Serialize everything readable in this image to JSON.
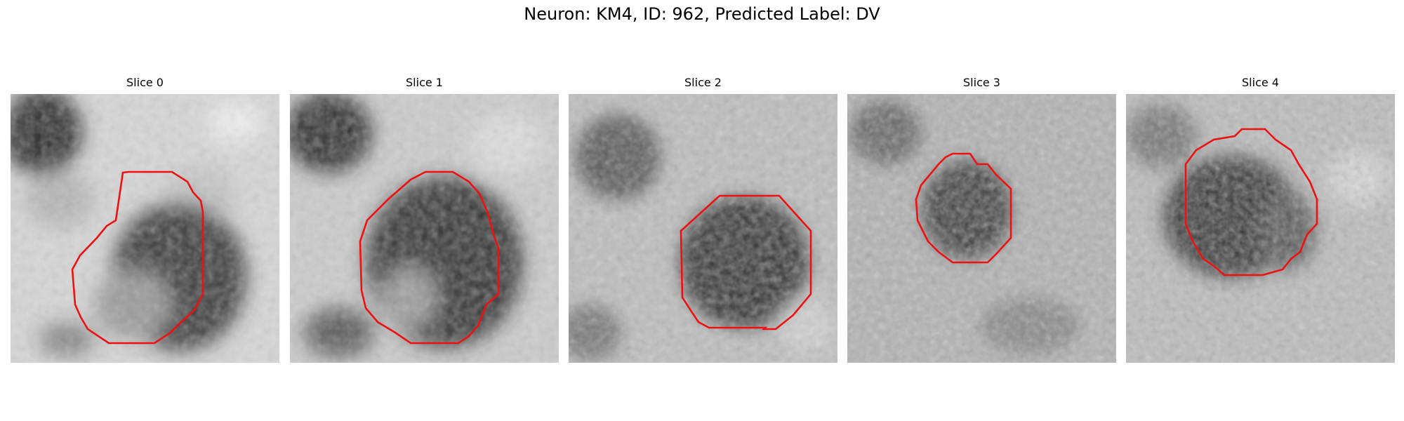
{
  "figure": {
    "title": "Neuron: KM4, ID: 962, Predicted Label: DV"
  },
  "slices": [
    {
      "label": "Slice 0"
    },
    {
      "label": "Slice 1"
    },
    {
      "label": "Slice 2"
    },
    {
      "label": "Slice 3"
    },
    {
      "label": "Slice 4"
    }
  ],
  "colors": {
    "contour": "#ee1111",
    "background": "#ffffff"
  }
}
